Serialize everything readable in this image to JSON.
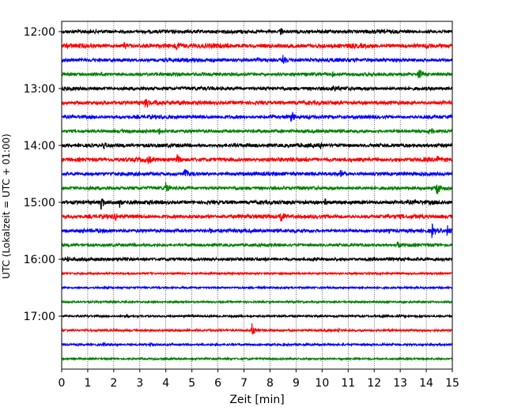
{
  "chart_data": {
    "type": "line",
    "title": "",
    "xlabel": "Zeit  [min]",
    "ylabel": "UTC (Lokalzeit = UTC + 01:00)",
    "xlim": [
      0,
      15
    ],
    "x_ticks": [
      0,
      1,
      2,
      3,
      4,
      5,
      6,
      7,
      8,
      9,
      10,
      11,
      12,
      13,
      14,
      15
    ],
    "x_tick_labels": [
      "0",
      "1",
      "2",
      "3",
      "4",
      "5",
      "6",
      "7",
      "8",
      "9",
      "10",
      "11",
      "12",
      "13",
      "14",
      "15"
    ],
    "y_ticks_minutes": [
      720,
      780,
      840,
      900,
      960,
      1020
    ],
    "y_tick_labels": [
      "12:00",
      "13:00",
      "14:00",
      "15:00",
      "16:00",
      "17:00"
    ],
    "grid": {
      "x_dotted": true,
      "y": false
    },
    "legend": "none",
    "colors": [
      "#000000",
      "#ff0000",
      "#0000ff",
      "#008000"
    ],
    "series": [
      {
        "start": "12:00",
        "color": "#000000",
        "activity": 0.55,
        "events": [
          {
            "t": 8.4,
            "amp": 0.45
          },
          {
            "t": 10.0,
            "amp": 0.3
          }
        ]
      },
      {
        "start": "12:15",
        "color": "#ff0000",
        "activity": 0.75,
        "events": [
          {
            "t": 2.4,
            "amp": 0.45
          },
          {
            "t": 4.4,
            "amp": 0.9
          },
          {
            "t": 9.8,
            "amp": 0.5
          },
          {
            "t": 14.0,
            "amp": 0.35
          }
        ]
      },
      {
        "start": "12:30",
        "color": "#0000ff",
        "activity": 0.6,
        "events": [
          {
            "t": 8.5,
            "amp": 0.9
          },
          {
            "t": 7.5,
            "amp": 0.3
          }
        ]
      },
      {
        "start": "12:45",
        "color": "#008000",
        "activity": 0.5,
        "events": [
          {
            "t": 10.4,
            "amp": 0.4
          },
          {
            "t": 13.7,
            "amp": 0.85
          }
        ]
      },
      {
        "start": "13:00",
        "color": "#000000",
        "activity": 0.55,
        "events": [
          {
            "t": 10.4,
            "amp": 0.4
          }
        ]
      },
      {
        "start": "13:15",
        "color": "#ff0000",
        "activity": 0.65,
        "events": [
          {
            "t": 3.2,
            "amp": 0.8
          },
          {
            "t": 3.6,
            "amp": 0.4
          },
          {
            "t": 13.4,
            "amp": 0.5
          }
        ]
      },
      {
        "start": "13:30",
        "color": "#0000ff",
        "activity": 0.55,
        "events": [
          {
            "t": 8.8,
            "amp": 0.85
          },
          {
            "t": 8.1,
            "amp": 0.3
          }
        ]
      },
      {
        "start": "13:45",
        "color": "#008000",
        "activity": 0.5,
        "events": [
          {
            "t": 3.7,
            "amp": 0.4
          },
          {
            "t": 14.1,
            "amp": 0.85
          }
        ]
      },
      {
        "start": "14:00",
        "color": "#000000",
        "activity": 0.6,
        "events": [
          {
            "t": 1.6,
            "amp": 0.4
          },
          {
            "t": 9.9,
            "amp": 0.45
          }
        ]
      },
      {
        "start": "14:15",
        "color": "#ff0000",
        "activity": 0.7,
        "events": [
          {
            "t": 3.3,
            "amp": 0.45
          },
          {
            "t": 4.4,
            "amp": 0.75
          },
          {
            "t": 14.4,
            "amp": 0.45
          }
        ]
      },
      {
        "start": "14:30",
        "color": "#0000ff",
        "activity": 0.55,
        "events": [
          {
            "t": 4.7,
            "amp": 0.8
          },
          {
            "t": 10.7,
            "amp": 0.45
          }
        ]
      },
      {
        "start": "14:45",
        "color": "#008000",
        "activity": 0.5,
        "events": [
          {
            "t": 4.0,
            "amp": 0.75
          },
          {
            "t": 14.4,
            "amp": 0.85
          }
        ]
      },
      {
        "start": "15:00",
        "color": "#000000",
        "activity": 0.65,
        "events": [
          {
            "t": 1.5,
            "amp": 0.75
          },
          {
            "t": 2.2,
            "amp": 0.7
          },
          {
            "t": 10.1,
            "amp": 0.4
          }
        ]
      },
      {
        "start": "15:15",
        "color": "#ff0000",
        "activity": 0.65,
        "events": [
          {
            "t": 2.0,
            "amp": 0.55
          },
          {
            "t": 8.4,
            "amp": 0.75
          },
          {
            "t": 9.1,
            "amp": 0.3
          }
        ]
      },
      {
        "start": "15:30",
        "color": "#0000ff",
        "activity": 0.55,
        "events": [
          {
            "t": 5.7,
            "amp": 0.35
          },
          {
            "t": 14.2,
            "amp": 0.9
          },
          {
            "t": 14.8,
            "amp": 0.9
          }
        ]
      },
      {
        "start": "15:45",
        "color": "#008000",
        "activity": 0.4,
        "events": [
          {
            "t": 12.9,
            "amp": 0.5
          }
        ]
      },
      {
        "start": "16:00",
        "color": "#000000",
        "activity": 0.45,
        "events": [
          {
            "t": 0.2,
            "amp": 0.3
          },
          {
            "t": 9.6,
            "amp": 0.3
          }
        ]
      },
      {
        "start": "16:15",
        "color": "#ff0000",
        "activity": 0.05,
        "events": []
      },
      {
        "start": "16:30",
        "color": "#0000ff",
        "activity": 0.05,
        "events": []
      },
      {
        "start": "16:45",
        "color": "#008000",
        "activity": 0.05,
        "events": []
      },
      {
        "start": "17:00",
        "color": "#000000",
        "activity": 0.08,
        "events": [
          {
            "t": 2.5,
            "amp": 0.2
          },
          {
            "t": 12.3,
            "amp": 0.15
          }
        ]
      },
      {
        "start": "17:15",
        "color": "#ff0000",
        "activity": 0.15,
        "events": [
          {
            "t": 7.3,
            "amp": 0.85
          },
          {
            "t": 10.6,
            "amp": 0.35
          }
        ]
      },
      {
        "start": "17:30",
        "color": "#0000ff",
        "activity": 0.12,
        "events": [
          {
            "t": 1.6,
            "amp": 0.25
          },
          {
            "t": 3.4,
            "amp": 0.35
          }
        ]
      },
      {
        "start": "17:45",
        "color": "#008000",
        "activity": 0.05,
        "events": []
      }
    ]
  }
}
